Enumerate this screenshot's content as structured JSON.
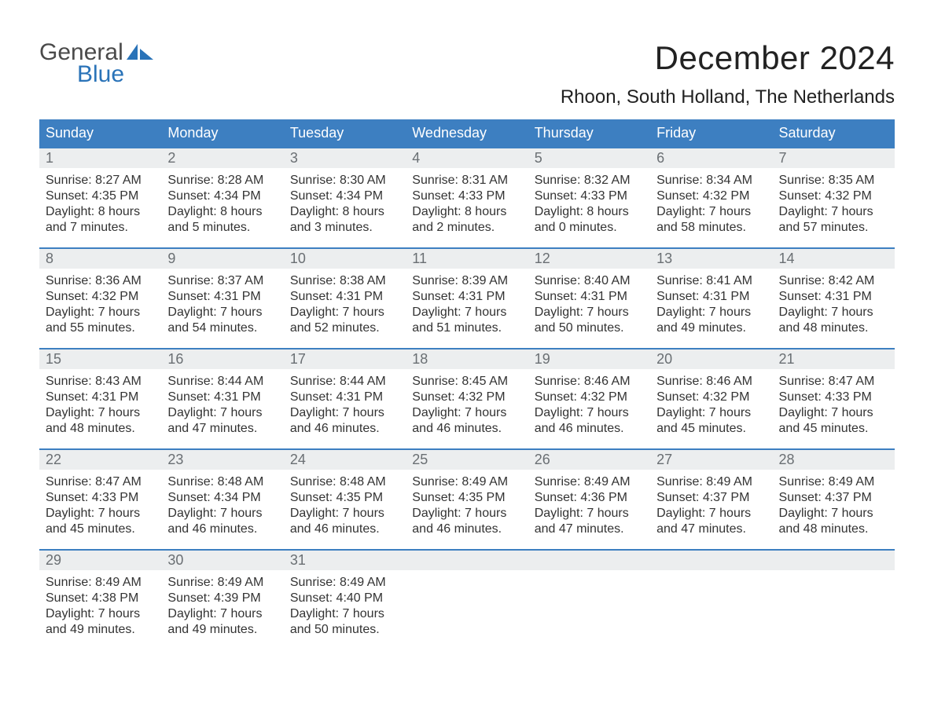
{
  "logo": {
    "word1": "General",
    "word2": "Blue"
  },
  "title": "December 2024",
  "location": "Rhoon, South Holland, The Netherlands",
  "colors": {
    "header_bg": "#3d7fc1",
    "header_text": "#ffffff",
    "daynum_bg": "#eceeef",
    "daynum_text": "#6a6f73",
    "body_text": "#333333",
    "week_border": "#3d7fc1",
    "logo_gray": "#4a4a4a",
    "logo_blue": "#2a73b8",
    "background": "#ffffff"
  },
  "typography": {
    "title_fontsize": 42,
    "location_fontsize": 24,
    "dow_fontsize": 18,
    "daynum_fontsize": 18,
    "body_fontsize": 16
  },
  "dow": [
    "Sunday",
    "Monday",
    "Tuesday",
    "Wednesday",
    "Thursday",
    "Friday",
    "Saturday"
  ],
  "weeks": [
    [
      {
        "n": "1",
        "sunrise": "8:27 AM",
        "sunset": "4:35 PM",
        "dl1": "8 hours",
        "dl2": "and 7 minutes."
      },
      {
        "n": "2",
        "sunrise": "8:28 AM",
        "sunset": "4:34 PM",
        "dl1": "8 hours",
        "dl2": "and 5 minutes."
      },
      {
        "n": "3",
        "sunrise": "8:30 AM",
        "sunset": "4:34 PM",
        "dl1": "8 hours",
        "dl2": "and 3 minutes."
      },
      {
        "n": "4",
        "sunrise": "8:31 AM",
        "sunset": "4:33 PM",
        "dl1": "8 hours",
        "dl2": "and 2 minutes."
      },
      {
        "n": "5",
        "sunrise": "8:32 AM",
        "sunset": "4:33 PM",
        "dl1": "8 hours",
        "dl2": "and 0 minutes."
      },
      {
        "n": "6",
        "sunrise": "8:34 AM",
        "sunset": "4:32 PM",
        "dl1": "7 hours",
        "dl2": "and 58 minutes."
      },
      {
        "n": "7",
        "sunrise": "8:35 AM",
        "sunset": "4:32 PM",
        "dl1": "7 hours",
        "dl2": "and 57 minutes."
      }
    ],
    [
      {
        "n": "8",
        "sunrise": "8:36 AM",
        "sunset": "4:32 PM",
        "dl1": "7 hours",
        "dl2": "and 55 minutes."
      },
      {
        "n": "9",
        "sunrise": "8:37 AM",
        "sunset": "4:31 PM",
        "dl1": "7 hours",
        "dl2": "and 54 minutes."
      },
      {
        "n": "10",
        "sunrise": "8:38 AM",
        "sunset": "4:31 PM",
        "dl1": "7 hours",
        "dl2": "and 52 minutes."
      },
      {
        "n": "11",
        "sunrise": "8:39 AM",
        "sunset": "4:31 PM",
        "dl1": "7 hours",
        "dl2": "and 51 minutes."
      },
      {
        "n": "12",
        "sunrise": "8:40 AM",
        "sunset": "4:31 PM",
        "dl1": "7 hours",
        "dl2": "and 50 minutes."
      },
      {
        "n": "13",
        "sunrise": "8:41 AM",
        "sunset": "4:31 PM",
        "dl1": "7 hours",
        "dl2": "and 49 minutes."
      },
      {
        "n": "14",
        "sunrise": "8:42 AM",
        "sunset": "4:31 PM",
        "dl1": "7 hours",
        "dl2": "and 48 minutes."
      }
    ],
    [
      {
        "n": "15",
        "sunrise": "8:43 AM",
        "sunset": "4:31 PM",
        "dl1": "7 hours",
        "dl2": "and 48 minutes."
      },
      {
        "n": "16",
        "sunrise": "8:44 AM",
        "sunset": "4:31 PM",
        "dl1": "7 hours",
        "dl2": "and 47 minutes."
      },
      {
        "n": "17",
        "sunrise": "8:44 AM",
        "sunset": "4:31 PM",
        "dl1": "7 hours",
        "dl2": "and 46 minutes."
      },
      {
        "n": "18",
        "sunrise": "8:45 AM",
        "sunset": "4:32 PM",
        "dl1": "7 hours",
        "dl2": "and 46 minutes."
      },
      {
        "n": "19",
        "sunrise": "8:46 AM",
        "sunset": "4:32 PM",
        "dl1": "7 hours",
        "dl2": "and 46 minutes."
      },
      {
        "n": "20",
        "sunrise": "8:46 AM",
        "sunset": "4:32 PM",
        "dl1": "7 hours",
        "dl2": "and 45 minutes."
      },
      {
        "n": "21",
        "sunrise": "8:47 AM",
        "sunset": "4:33 PM",
        "dl1": "7 hours",
        "dl2": "and 45 minutes."
      }
    ],
    [
      {
        "n": "22",
        "sunrise": "8:47 AM",
        "sunset": "4:33 PM",
        "dl1": "7 hours",
        "dl2": "and 45 minutes."
      },
      {
        "n": "23",
        "sunrise": "8:48 AM",
        "sunset": "4:34 PM",
        "dl1": "7 hours",
        "dl2": "and 46 minutes."
      },
      {
        "n": "24",
        "sunrise": "8:48 AM",
        "sunset": "4:35 PM",
        "dl1": "7 hours",
        "dl2": "and 46 minutes."
      },
      {
        "n": "25",
        "sunrise": "8:49 AM",
        "sunset": "4:35 PM",
        "dl1": "7 hours",
        "dl2": "and 46 minutes."
      },
      {
        "n": "26",
        "sunrise": "8:49 AM",
        "sunset": "4:36 PM",
        "dl1": "7 hours",
        "dl2": "and 47 minutes."
      },
      {
        "n": "27",
        "sunrise": "8:49 AM",
        "sunset": "4:37 PM",
        "dl1": "7 hours",
        "dl2": "and 47 minutes."
      },
      {
        "n": "28",
        "sunrise": "8:49 AM",
        "sunset": "4:37 PM",
        "dl1": "7 hours",
        "dl2": "and 48 minutes."
      }
    ],
    [
      {
        "n": "29",
        "sunrise": "8:49 AM",
        "sunset": "4:38 PM",
        "dl1": "7 hours",
        "dl2": "and 49 minutes."
      },
      {
        "n": "30",
        "sunrise": "8:49 AM",
        "sunset": "4:39 PM",
        "dl1": "7 hours",
        "dl2": "and 49 minutes."
      },
      {
        "n": "31",
        "sunrise": "8:49 AM",
        "sunset": "4:40 PM",
        "dl1": "7 hours",
        "dl2": "and 50 minutes."
      },
      null,
      null,
      null,
      null
    ]
  ]
}
